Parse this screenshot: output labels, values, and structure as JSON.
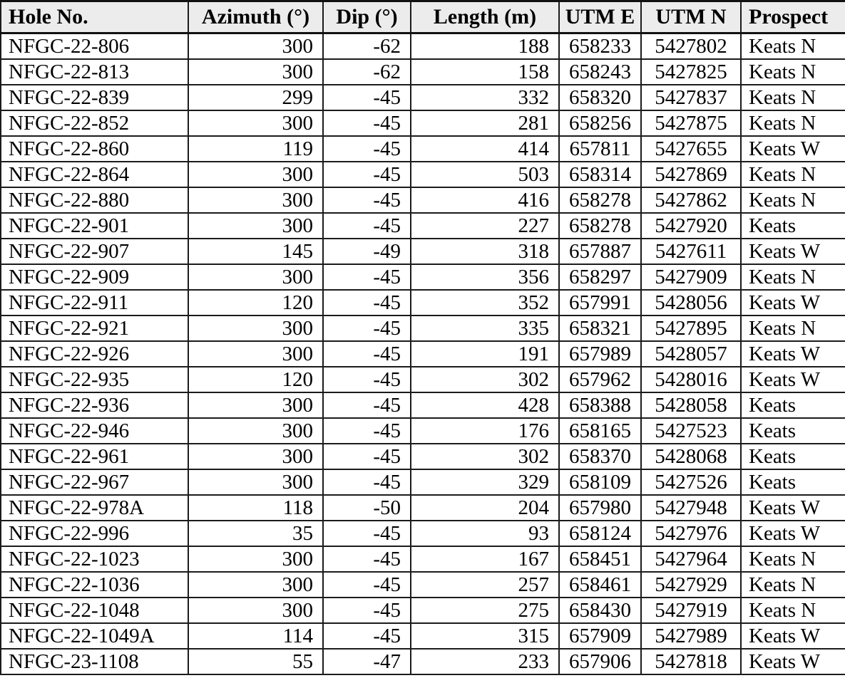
{
  "colors": {
    "header_bg": "#ececec",
    "border": "#1b1b1b",
    "text": "#000000"
  },
  "table": {
    "columns": [
      {
        "key": "hole_no",
        "label": "Hole No."
      },
      {
        "key": "azimuth",
        "label": "Azimuth (°)"
      },
      {
        "key": "dip",
        "label": "Dip (°)"
      },
      {
        "key": "length",
        "label": "Length (m)"
      },
      {
        "key": "utm_e",
        "label": "UTM E"
      },
      {
        "key": "utm_n",
        "label": "UTM N"
      },
      {
        "key": "prospect",
        "label": "Prospect"
      }
    ],
    "rows": [
      [
        "NFGC-22-806",
        "300",
        "-62",
        "188",
        "658233",
        "5427802",
        "Keats N"
      ],
      [
        "NFGC-22-813",
        "300",
        "-62",
        "158",
        "658243",
        "5427825",
        "Keats N"
      ],
      [
        "NFGC-22-839",
        "299",
        "-45",
        "332",
        "658320",
        "5427837",
        "Keats N"
      ],
      [
        "NFGC-22-852",
        "300",
        "-45",
        "281",
        "658256",
        "5427875",
        "Keats N"
      ],
      [
        "NFGC-22-860",
        "119",
        "-45",
        "414",
        "657811",
        "5427655",
        "Keats W"
      ],
      [
        "NFGC-22-864",
        "300",
        "-45",
        "503",
        "658314",
        "5427869",
        "Keats N"
      ],
      [
        "NFGC-22-880",
        "300",
        "-45",
        "416",
        "658278",
        "5427862",
        "Keats N"
      ],
      [
        "NFGC-22-901",
        "300",
        "-45",
        "227",
        "658278",
        "5427920",
        "Keats"
      ],
      [
        "NFGC-22-907",
        "145",
        "-49",
        "318",
        "657887",
        "5427611",
        "Keats W"
      ],
      [
        "NFGC-22-909",
        "300",
        "-45",
        "356",
        "658297",
        "5427909",
        "Keats N"
      ],
      [
        "NFGC-22-911",
        "120",
        "-45",
        "352",
        "657991",
        "5428056",
        "Keats W"
      ],
      [
        "NFGC-22-921",
        "300",
        "-45",
        "335",
        "658321",
        "5427895",
        "Keats N"
      ],
      [
        "NFGC-22-926",
        "300",
        "-45",
        "191",
        "657989",
        "5428057",
        "Keats W"
      ],
      [
        "NFGC-22-935",
        "120",
        "-45",
        "302",
        "657962",
        "5428016",
        "Keats W"
      ],
      [
        "NFGC-22-936",
        "300",
        "-45",
        "428",
        "658388",
        "5428058",
        "Keats"
      ],
      [
        "NFGC-22-946",
        "300",
        "-45",
        "176",
        "658165",
        "5427523",
        "Keats"
      ],
      [
        "NFGC-22-961",
        "300",
        "-45",
        "302",
        "658370",
        "5428068",
        "Keats"
      ],
      [
        "NFGC-22-967",
        "300",
        "-45",
        "329",
        "658109",
        "5427526",
        "Keats"
      ],
      [
        "NFGC-22-978A",
        "118",
        "-50",
        "204",
        "657980",
        "5427948",
        "Keats W"
      ],
      [
        "NFGC-22-996",
        "35",
        "-45",
        "93",
        "658124",
        "5427976",
        "Keats W"
      ],
      [
        "NFGC-22-1023",
        "300",
        "-45",
        "167",
        "658451",
        "5427964",
        "Keats N"
      ],
      [
        "NFGC-22-1036",
        "300",
        "-45",
        "257",
        "658461",
        "5427929",
        "Keats N"
      ],
      [
        "NFGC-22-1048",
        "300",
        "-45",
        "275",
        "658430",
        "5427919",
        "Keats N"
      ],
      [
        "NFGC-22-1049A",
        "114",
        "-45",
        "315",
        "657909",
        "5427989",
        "Keats W"
      ],
      [
        "NFGC-23-1108",
        "55",
        "-47",
        "233",
        "657906",
        "5427818",
        "Keats W"
      ]
    ]
  }
}
